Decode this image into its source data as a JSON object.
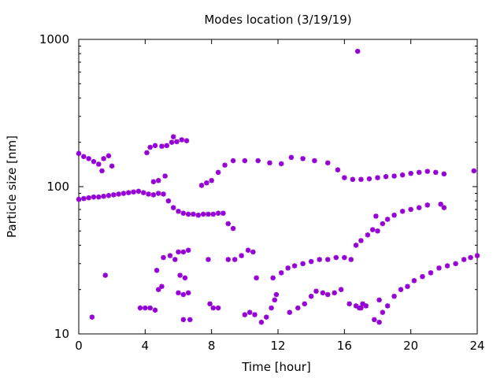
{
  "chart_data": {
    "type": "scatter",
    "title": "Modes location (3/19/19)",
    "xlabel": "Time [hour]",
    "ylabel": "Particle size [nm]",
    "xlim": [
      0,
      24
    ],
    "ylim": [
      10,
      1000
    ],
    "y_scale": "log",
    "x_ticks": [
      0,
      4,
      8,
      12,
      16,
      20,
      24
    ],
    "y_ticks": [
      10,
      100,
      1000
    ],
    "y_tick_labels": [
      "10",
      "100",
      "1000"
    ],
    "grid": false,
    "marker_color": "#9400d3",
    "series": [
      {
        "points": [
          [
            0.0,
            82
          ],
          [
            0.3,
            83
          ],
          [
            0.6,
            84
          ],
          [
            0.9,
            85
          ],
          [
            1.2,
            85
          ],
          [
            1.5,
            86
          ],
          [
            1.8,
            87
          ],
          [
            2.1,
            88
          ],
          [
            2.4,
            89
          ],
          [
            2.7,
            90
          ],
          [
            3.0,
            91
          ],
          [
            3.3,
            92
          ],
          [
            3.6,
            93
          ],
          [
            3.9,
            91
          ],
          [
            4.2,
            89
          ],
          [
            4.5,
            88
          ],
          [
            4.8,
            90
          ],
          [
            5.1,
            89
          ],
          [
            5.4,
            80
          ],
          [
            5.7,
            72
          ],
          [
            6.0,
            68
          ],
          [
            6.3,
            66
          ],
          [
            6.6,
            65
          ],
          [
            6.9,
            65
          ],
          [
            7.2,
            64
          ],
          [
            7.5,
            65
          ],
          [
            7.8,
            65
          ],
          [
            8.1,
            65
          ],
          [
            8.4,
            66
          ],
          [
            8.7,
            66
          ],
          [
            9.0,
            56
          ],
          [
            9.3,
            52
          ],
          [
            0.0,
            168
          ],
          [
            0.3,
            160
          ],
          [
            0.6,
            155
          ],
          [
            0.9,
            148
          ],
          [
            1.2,
            142
          ],
          [
            1.5,
            155
          ],
          [
            1.8,
            162
          ],
          [
            2.0,
            138
          ],
          [
            1.4,
            128
          ],
          [
            4.1,
            170
          ],
          [
            4.3,
            185
          ],
          [
            4.6,
            190
          ],
          [
            5.0,
            188
          ],
          [
            5.3,
            190
          ],
          [
            5.6,
            200
          ],
          [
            5.9,
            202
          ],
          [
            6.2,
            208
          ],
          [
            6.5,
            205
          ],
          [
            5.7,
            218
          ],
          [
            4.8,
            110
          ],
          [
            5.2,
            118
          ],
          [
            4.5,
            108
          ],
          [
            7.4,
            102
          ],
          [
            7.7,
            106
          ],
          [
            8.0,
            110
          ],
          [
            8.4,
            125
          ],
          [
            8.8,
            140
          ],
          [
            9.3,
            150
          ],
          [
            10.0,
            150
          ],
          [
            10.8,
            150
          ],
          [
            11.5,
            145
          ],
          [
            12.2,
            143
          ],
          [
            12.8,
            158
          ],
          [
            13.5,
            155
          ],
          [
            14.2,
            150
          ],
          [
            15.0,
            145
          ],
          [
            15.6,
            130
          ],
          [
            16.0,
            115
          ],
          [
            16.5,
            112
          ],
          [
            17.0,
            112
          ],
          [
            17.5,
            113
          ],
          [
            18.0,
            115
          ],
          [
            18.5,
            117
          ],
          [
            19.0,
            118
          ],
          [
            19.5,
            120
          ],
          [
            20.0,
            123
          ],
          [
            20.5,
            125
          ],
          [
            21.0,
            127
          ],
          [
            21.5,
            125
          ],
          [
            22.0,
            122
          ],
          [
            23.8,
            128
          ],
          [
            9.0,
            32
          ],
          [
            9.4,
            32
          ],
          [
            9.8,
            34
          ],
          [
            10.2,
            37
          ],
          [
            10.5,
            36
          ],
          [
            10.7,
            24
          ],
          [
            11.7,
            24
          ],
          [
            12.2,
            26
          ],
          [
            12.6,
            28
          ],
          [
            13.0,
            29
          ],
          [
            13.5,
            30
          ],
          [
            14.0,
            31
          ],
          [
            14.5,
            32
          ],
          [
            15.0,
            32
          ],
          [
            15.5,
            33
          ],
          [
            16.0,
            33
          ],
          [
            16.4,
            32
          ],
          [
            16.7,
            40
          ],
          [
            17.0,
            43
          ],
          [
            17.4,
            47
          ],
          [
            17.7,
            51
          ],
          [
            18.0,
            50
          ],
          [
            18.3,
            56
          ],
          [
            18.6,
            60
          ],
          [
            19.0,
            64
          ],
          [
            19.5,
            68
          ],
          [
            20.0,
            70
          ],
          [
            20.5,
            72
          ],
          [
            21.0,
            75
          ],
          [
            21.8,
            76
          ],
          [
            22.0,
            72
          ],
          [
            17.9,
            63
          ],
          [
            0.8,
            13
          ],
          [
            1.6,
            25
          ],
          [
            3.7,
            15
          ],
          [
            4.0,
            15
          ],
          [
            4.3,
            15
          ],
          [
            4.6,
            14.5
          ],
          [
            4.8,
            20
          ],
          [
            5.0,
            21
          ],
          [
            5.1,
            33
          ],
          [
            5.5,
            34
          ],
          [
            5.8,
            32
          ],
          [
            6.0,
            36
          ],
          [
            6.3,
            36
          ],
          [
            6.6,
            37
          ],
          [
            6.1,
            25
          ],
          [
            6.4,
            24
          ],
          [
            6.0,
            19
          ],
          [
            6.3,
            18.5
          ],
          [
            6.6,
            19
          ],
          [
            6.3,
            12.5
          ],
          [
            6.7,
            12.5
          ],
          [
            4.7,
            27
          ],
          [
            7.8,
            32
          ],
          [
            7.9,
            16
          ],
          [
            8.1,
            15
          ],
          [
            8.4,
            15
          ],
          [
            10.0,
            13.5
          ],
          [
            10.3,
            14
          ],
          [
            10.6,
            13.5
          ],
          [
            11.0,
            12
          ],
          [
            11.3,
            13
          ],
          [
            11.6,
            15
          ],
          [
            11.8,
            17
          ],
          [
            11.9,
            18.5
          ],
          [
            12.7,
            14
          ],
          [
            13.2,
            15
          ],
          [
            13.6,
            16
          ],
          [
            14.0,
            18
          ],
          [
            14.3,
            19.5
          ],
          [
            14.7,
            19
          ],
          [
            15.0,
            18.5
          ],
          [
            15.4,
            19
          ],
          [
            15.8,
            20
          ],
          [
            16.3,
            16
          ],
          [
            16.7,
            15.5
          ],
          [
            17.0,
            15
          ],
          [
            17.3,
            15.5
          ],
          [
            17.1,
            16
          ],
          [
            16.9,
            15
          ],
          [
            17.8,
            12.5
          ],
          [
            18.1,
            12
          ],
          [
            18.3,
            14
          ],
          [
            18.6,
            15.5
          ],
          [
            19.0,
            18
          ],
          [
            19.4,
            20
          ],
          [
            19.8,
            21
          ],
          [
            20.2,
            23
          ],
          [
            20.7,
            24.5
          ],
          [
            21.2,
            26
          ],
          [
            21.7,
            28
          ],
          [
            22.2,
            29
          ],
          [
            22.7,
            30
          ],
          [
            23.2,
            32
          ],
          [
            23.6,
            33
          ],
          [
            24.0,
            34
          ],
          [
            18.1,
            17
          ],
          [
            16.8,
            830
          ]
        ]
      }
    ]
  }
}
